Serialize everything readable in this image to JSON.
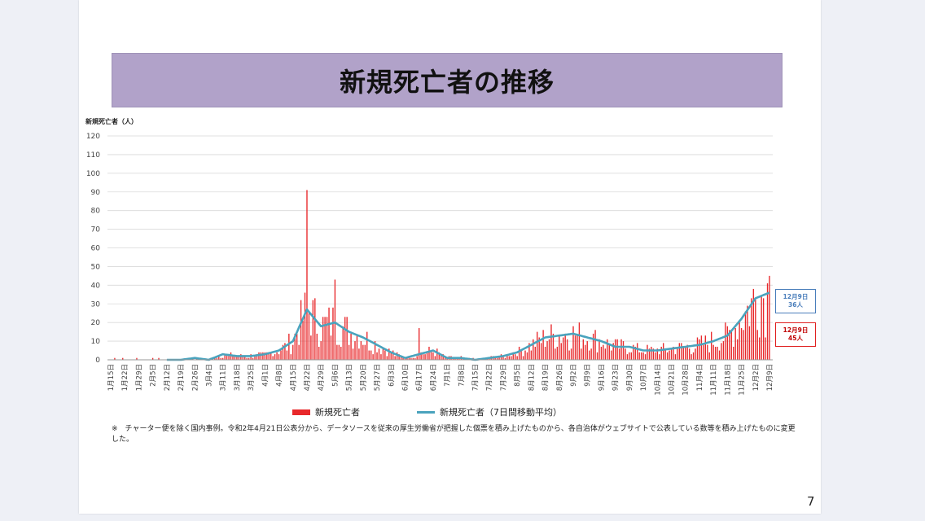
{
  "slide": {
    "title": "新規死亡者の推移",
    "y_unit_label": "新規死亡者（人）",
    "note": "※　チャーター便を除く国内事例。令和2年4月21日公表分から、データソースを従来の厚生労働省が把握した個票を積み上げたものから、各自治体がウェブサイトで公表している数等を積み上げたものに変更した。",
    "page_number": "7",
    "legend": {
      "daily": "新規死亡者",
      "avg": "新規死亡者（7日間移動平均）"
    },
    "annotations": {
      "avg": {
        "date": "12月9日",
        "value": "36人"
      },
      "daily": {
        "date": "12月9日",
        "value": "45人"
      }
    }
  },
  "colors": {
    "bar": "#e8282b",
    "line": "#4aa3bd",
    "title_bg": "#b1a2c9",
    "grid": "#d9d9d9"
  },
  "chart_data": {
    "type": "bar",
    "ylabel": "新規死亡者（人）",
    "ylim": [
      0,
      120
    ],
    "yticks": [
      0,
      10,
      20,
      30,
      40,
      50,
      60,
      70,
      80,
      90,
      100,
      110,
      120
    ],
    "x_start": "1月15日",
    "x_end": "12月9日",
    "x_ticks": [
      "1月15日",
      "1月22日",
      "1月29日",
      "2月5日",
      "2月12日",
      "2月19日",
      "2月26日",
      "3月4日",
      "3月11日",
      "3月18日",
      "3月25日",
      "4月1日",
      "4月8日",
      "4月15日",
      "4月22日",
      "4月29日",
      "5月6日",
      "5月13日",
      "5月20日",
      "5月27日",
      "6月3日",
      "6月10日",
      "6月17日",
      "6月24日",
      "7月1日",
      "7月8日",
      "7月15日",
      "7月22日",
      "7月29日",
      "8月5日",
      "8月12日",
      "8月19日",
      "8月26日",
      "9月2日",
      "9月9日",
      "9月16日",
      "9月23日",
      "9月30日",
      "10月7日",
      "10月14日",
      "10月21日",
      "10月28日",
      "11月4日",
      "11月11日",
      "11月18日",
      "11月25日",
      "12月2日",
      "12月9日"
    ],
    "weekly_points": [
      0,
      0,
      0,
      0,
      0,
      0,
      1,
      0,
      3,
      2,
      2,
      3,
      5,
      10,
      27,
      18,
      20,
      15,
      12,
      8,
      4,
      1,
      3,
      5,
      1,
      1,
      0,
      1,
      2,
      4,
      8,
      12,
      13,
      14,
      12,
      10,
      7,
      7,
      5,
      5,
      6,
      7,
      8,
      10,
      13,
      22,
      33,
      36
    ],
    "series": [
      {
        "name": "新規死亡者",
        "kind": "bar",
        "values_key": "daily"
      },
      {
        "name": "新規死亡者（7日間移動平均）",
        "kind": "line",
        "values_key": "avg"
      }
    ],
    "daily_peaks": [
      {
        "date": "4月22日",
        "value": 91
      },
      {
        "date": "5月6日",
        "value": 43
      },
      {
        "date": "6月17日",
        "value": 17
      },
      {
        "date": "12月9日",
        "value": 45
      }
    ],
    "avg_last": 36,
    "legend_position": "bottom",
    "grid": true
  }
}
